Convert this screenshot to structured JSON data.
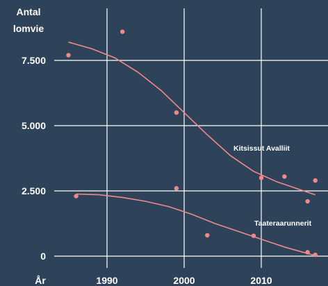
{
  "chart_data": {
    "type": "scatter",
    "ylabel_lines": [
      "Antal",
      "lomvie"
    ],
    "xlabel": "År",
    "x_ticks": [
      {
        "value": 1990,
        "label": "1990"
      },
      {
        "value": 2000,
        "label": "2000"
      },
      {
        "value": 2010,
        "label": "2010"
      }
    ],
    "y_ticks": [
      {
        "value": 0,
        "label": "0"
      },
      {
        "value": 2500,
        "label": "2.500"
      },
      {
        "value": 5000,
        "label": "5.000"
      },
      {
        "value": 7500,
        "label": "7.500"
      }
    ],
    "xlim": [
      1983,
      2018
    ],
    "ylim": [
      -250,
      9800
    ],
    "grid": true,
    "colors": {
      "background": "#2e4259",
      "grid": "#ffffff",
      "points": "#f08a8a",
      "trend": "#f08a8a",
      "text": "#ffffff"
    },
    "series": [
      {
        "name": "Kitsissut Avalliit",
        "points": [
          {
            "x": 1985,
            "y": 7700
          },
          {
            "x": 1992,
            "y": 8600
          },
          {
            "x": 1999,
            "y": 5500
          },
          {
            "x": 2010,
            "y": 3000
          },
          {
            "x": 2016,
            "y": 2100
          },
          {
            "x": 2017,
            "y": 2900
          }
        ],
        "trend": [
          {
            "x": 1985,
            "y": 8200
          },
          {
            "x": 1988,
            "y": 7950
          },
          {
            "x": 1991,
            "y": 7600
          },
          {
            "x": 1994,
            "y": 7050
          },
          {
            "x": 1997,
            "y": 6350
          },
          {
            "x": 2000,
            "y": 5500
          },
          {
            "x": 2003,
            "y": 4650
          },
          {
            "x": 2006,
            "y": 3850
          },
          {
            "x": 2009,
            "y": 3250
          },
          {
            "x": 2012,
            "y": 2850
          },
          {
            "x": 2015,
            "y": 2550
          },
          {
            "x": 2017,
            "y": 2350
          }
        ]
      },
      {
        "name": "Taateraarunnerit",
        "points": [
          {
            "x": 1986,
            "y": 2300
          },
          {
            "x": 1999,
            "y": 2600
          },
          {
            "x": 2003,
            "y": 800
          },
          {
            "x": 2009,
            "y": 780
          },
          {
            "x": 2013,
            "y": 3050
          },
          {
            "x": 2016,
            "y": 150
          },
          {
            "x": 2017,
            "y": 50
          }
        ],
        "trend": [
          {
            "x": 1986,
            "y": 2380
          },
          {
            "x": 1989,
            "y": 2350
          },
          {
            "x": 1992,
            "y": 2250
          },
          {
            "x": 1995,
            "y": 2100
          },
          {
            "x": 1998,
            "y": 1900
          },
          {
            "x": 2001,
            "y": 1600
          },
          {
            "x": 2004,
            "y": 1250
          },
          {
            "x": 2007,
            "y": 950
          },
          {
            "x": 2010,
            "y": 650
          },
          {
            "x": 2013,
            "y": 350
          },
          {
            "x": 2016,
            "y": 100
          },
          {
            "x": 2017,
            "y": 20
          }
        ]
      }
    ]
  }
}
